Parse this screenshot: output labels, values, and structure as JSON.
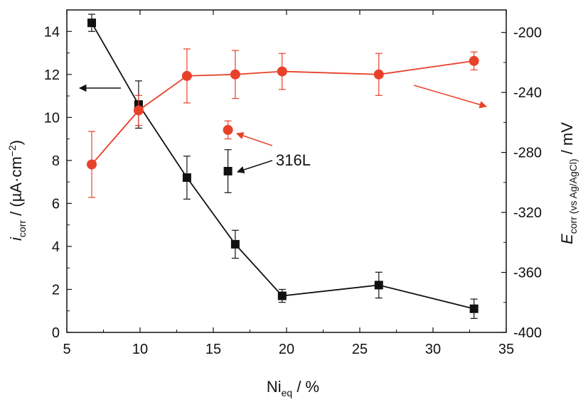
{
  "chart_data": {
    "type": "scatter",
    "x_axis": {
      "label_main": "Ni",
      "label_sub": "eq",
      "label_tail": " / %",
      "range": [
        5,
        35
      ],
      "ticks": [
        5,
        10,
        15,
        20,
        25,
        30,
        35
      ]
    },
    "y_left": {
      "label_main": "i",
      "label_sub": "corr",
      "label_tail": " / (µA·cm",
      "label_sup": "−2",
      "label_end": ")",
      "range": [
        0,
        15
      ],
      "ticks": [
        0,
        2,
        4,
        6,
        8,
        10,
        12,
        14
      ]
    },
    "y_right": {
      "label_main": "E",
      "label_sub": "corr (vs Ag/AgCl)",
      "label_tail": " / mV",
      "range": [
        -400,
        -185
      ],
      "ticks": [
        -200,
        -240,
        -280,
        -320,
        -360,
        -400
      ]
    },
    "colors": {
      "icorr": "#111111",
      "ecorr": "#e8412a"
    },
    "series": [
      {
        "key": "icorr",
        "axis": "left",
        "marker": "square",
        "connected": true,
        "x": [
          6.7,
          9.9,
          13.2,
          16.5,
          19.7,
          26.3,
          32.8
        ],
        "y": [
          14.4,
          10.6,
          7.2,
          4.1,
          1.7,
          2.2,
          1.1
        ],
        "err": [
          0.4,
          1.1,
          1.0,
          0.65,
          0.3,
          0.6,
          0.45
        ]
      },
      {
        "key": "ecorr",
        "axis": "right",
        "marker": "circle",
        "connected": true,
        "x": [
          6.7,
          9.9,
          13.2,
          16.5,
          19.7,
          26.3,
          32.8
        ],
        "y": [
          -288,
          -252,
          -229,
          -228,
          -226,
          -228,
          -219
        ],
        "err": [
          22,
          10,
          18,
          16,
          12,
          14,
          6
        ]
      }
    ],
    "reference_points": [
      {
        "key": "icorr",
        "axis": "left",
        "marker": "square",
        "x": 16.0,
        "y": 7.5,
        "err": 1.0
      },
      {
        "key": "ecorr",
        "axis": "right",
        "marker": "circle",
        "x": 16.0,
        "y": -265,
        "err": 6
      }
    ],
    "annotations": {
      "ref_label": "316L"
    }
  }
}
